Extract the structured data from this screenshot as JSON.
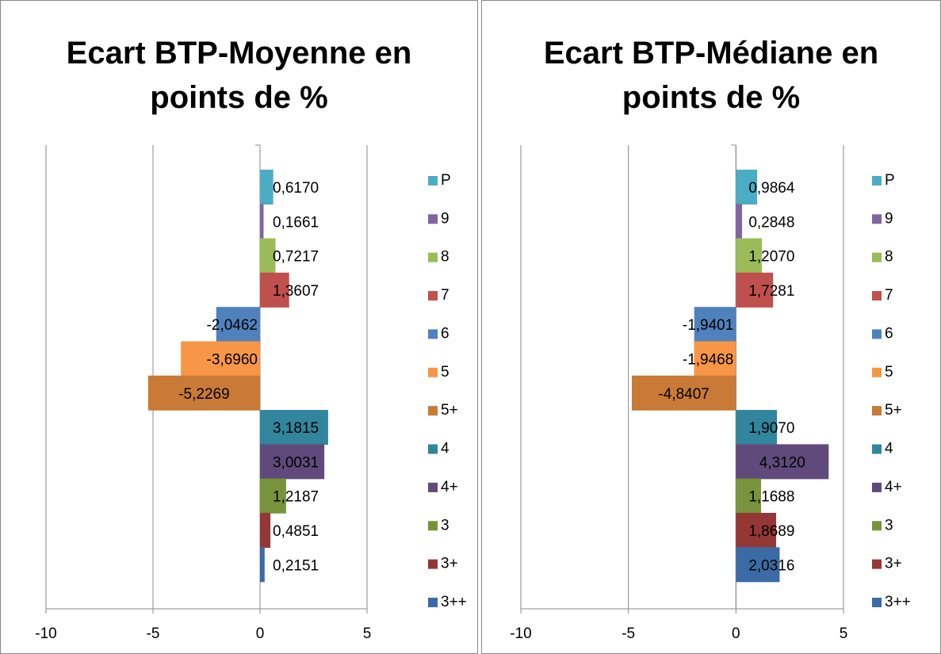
{
  "chart_data": [
    {
      "type": "hbar",
      "title": "Ecart BTP-Moyenne en points de %",
      "categories": [
        "P",
        "9",
        "8",
        "7",
        "6",
        "5",
        "5+",
        "4",
        "4+",
        "3",
        "3+",
        "3++"
      ],
      "values": [
        0.617,
        0.1661,
        0.7217,
        1.3607,
        -2.0462,
        -3.696,
        -5.2269,
        3.1815,
        3.0031,
        1.2187,
        0.4851,
        0.2151
      ],
      "value_labels": [
        "0,6170",
        "0,1661",
        "0,7217",
        "1,3607",
        "-2,0462",
        "-3,6960",
        "-5,2269",
        "3,1815",
        "3,0031",
        "1,2187",
        "0,4851",
        "0,2151"
      ],
      "colors": [
        "#4bacc6",
        "#8064a2",
        "#9bbb59",
        "#c0504d",
        "#4f81bd",
        "#f79646",
        "#c87a36",
        "#31859c",
        "#604a7b",
        "#77933c",
        "#953735",
        "#3a6ba5"
      ],
      "xlim": [
        -10,
        5
      ],
      "xticks": [
        -10,
        -5,
        0,
        5
      ],
      "grid": true,
      "legend": "right"
    },
    {
      "type": "hbar",
      "title": "Ecart BTP-Médiane en points de %",
      "categories": [
        "P",
        "9",
        "8",
        "7",
        "6",
        "5",
        "5+",
        "4",
        "4+",
        "3",
        "3+",
        "3++"
      ],
      "values": [
        0.9864,
        0.2848,
        1.207,
        1.7281,
        -1.9401,
        -1.9468,
        -4.8407,
        1.907,
        4.312,
        1.1688,
        1.8689,
        2.0316
      ],
      "value_labels": [
        "0,9864",
        "0,2848",
        "1,2070",
        "1,7281",
        "-1,9401",
        "-1,9468",
        "-4,8407",
        "1,9070",
        "4,3120",
        "1,1688",
        "1,8689",
        "2,0316"
      ],
      "colors": [
        "#4bacc6",
        "#8064a2",
        "#9bbb59",
        "#c0504d",
        "#4f81bd",
        "#f79646",
        "#c87a36",
        "#31859c",
        "#604a7b",
        "#77933c",
        "#953735",
        "#3a6ba5"
      ],
      "xlim": [
        -10,
        5
      ],
      "xticks": [
        -10,
        -5,
        0,
        5
      ],
      "grid": true,
      "legend": "right"
    }
  ]
}
